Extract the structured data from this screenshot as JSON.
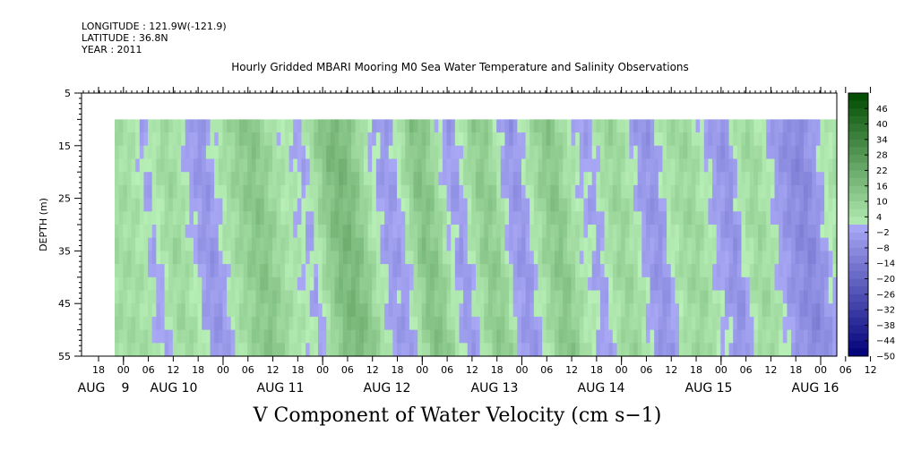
{
  "header": {
    "longitude": "LONGITUDE : 121.9W(-121.9)",
    "latitude": "LATITUDE : 36.8N",
    "year": "YEAR : 2011"
  },
  "title": "Hourly Gridded MBARI Mooring M0 Sea Water Temperature and Salinity Observations",
  "bottom_title": "V Component of Water Velocity (cm s−1)",
  "colors": {
    "negative_light": "#a8a8f5",
    "negative_dark": "#000078",
    "positive_light": "#b8f0b8",
    "positive_dark": "#004a00",
    "background": "#ffffff"
  },
  "chart_data": {
    "type": "heatmap",
    "ylabel": "DEPTH (m)",
    "y_ticks": [
      5,
      15,
      25,
      35,
      45,
      55
    ],
    "ylim": [
      55,
      5
    ],
    "data_depth_range": [
      10,
      55
    ],
    "x_hour_labels": [
      "18",
      "00",
      "06",
      "12",
      "18",
      "00",
      "06",
      "12",
      "18",
      "00",
      "06",
      "12",
      "18",
      "00",
      "06",
      "12",
      "18",
      "00",
      "06",
      "12",
      "18",
      "00",
      "06",
      "12",
      "18",
      "00",
      "06",
      "12",
      "18",
      "00",
      "06",
      "12"
    ],
    "x_date_labels": [
      "AUG",
      "9",
      "AUG 10",
      "AUG 11",
      "AUG 12",
      "AUG 13",
      "AUG 14",
      "AUG 15",
      "AUG 16"
    ],
    "colorbar_labels": [
      "46",
      "40",
      "34",
      "28",
      "22",
      "16",
      "10",
      "4",
      "−2",
      "−8",
      "−14",
      "−20",
      "−26",
      "−32",
      "−38",
      "−44",
      "−50"
    ],
    "colorbar_range": [
      -50,
      52
    ],
    "colorbar_step": 3,
    "time_profile_v": [
      {
        "t": 0,
        "v": 6
      },
      {
        "t": 3,
        "v": 4
      },
      {
        "t": 6,
        "v": -2
      },
      {
        "t": 8,
        "v": 3
      },
      {
        "t": 11,
        "v": 8
      },
      {
        "t": 14,
        "v": 4
      },
      {
        "t": 17,
        "v": -3
      },
      {
        "t": 20,
        "v": -6
      },
      {
        "t": 23,
        "v": 2
      },
      {
        "t": 26,
        "v": 7
      },
      {
        "t": 29,
        "v": 11
      },
      {
        "t": 32,
        "v": 14
      },
      {
        "t": 35,
        "v": 9
      },
      {
        "t": 38,
        "v": 4
      },
      {
        "t": 41,
        "v": 2
      },
      {
        "t": 44,
        "v": -2
      },
      {
        "t": 47,
        "v": 8
      },
      {
        "t": 50,
        "v": 16
      },
      {
        "t": 53,
        "v": 18
      },
      {
        "t": 56,
        "v": 13
      },
      {
        "t": 59,
        "v": 4
      },
      {
        "t": 62,
        "v": -3
      },
      {
        "t": 65,
        "v": -4
      },
      {
        "t": 68,
        "v": 5
      },
      {
        "t": 71,
        "v": 15
      },
      {
        "t": 74,
        "v": 12
      },
      {
        "t": 77,
        "v": 2
      },
      {
        "t": 80,
        "v": -5
      },
      {
        "t": 83,
        "v": 4
      },
      {
        "t": 86,
        "v": 12
      },
      {
        "t": 89,
        "v": 10
      },
      {
        "t": 92,
        "v": -2
      },
      {
        "t": 95,
        "v": -6
      },
      {
        "t": 98,
        "v": 3
      },
      {
        "t": 101,
        "v": 10
      },
      {
        "t": 104,
        "v": 14
      },
      {
        "t": 107,
        "v": 6
      },
      {
        "t": 110,
        "v": 1
      },
      {
        "t": 113,
        "v": -3
      },
      {
        "t": 116,
        "v": 5
      },
      {
        "t": 119,
        "v": 9
      },
      {
        "t": 122,
        "v": 4
      },
      {
        "t": 125,
        "v": -4
      },
      {
        "t": 128,
        "v": -6
      },
      {
        "t": 131,
        "v": 3
      },
      {
        "t": 134,
        "v": 7
      },
      {
        "t": 137,
        "v": 8
      },
      {
        "t": 140,
        "v": 2
      },
      {
        "t": 143,
        "v": -3
      },
      {
        "t": 146,
        "v": -7
      },
      {
        "t": 149,
        "v": 4
      },
      {
        "t": 152,
        "v": 8
      },
      {
        "t": 155,
        "v": 3
      },
      {
        "t": 158,
        "v": -4
      },
      {
        "t": 161,
        "v": -8
      },
      {
        "t": 164,
        "v": -10
      },
      {
        "t": 167,
        "v": -4
      },
      {
        "t": 170,
        "v": 3
      },
      {
        "t": 173,
        "v": 5
      }
    ]
  }
}
